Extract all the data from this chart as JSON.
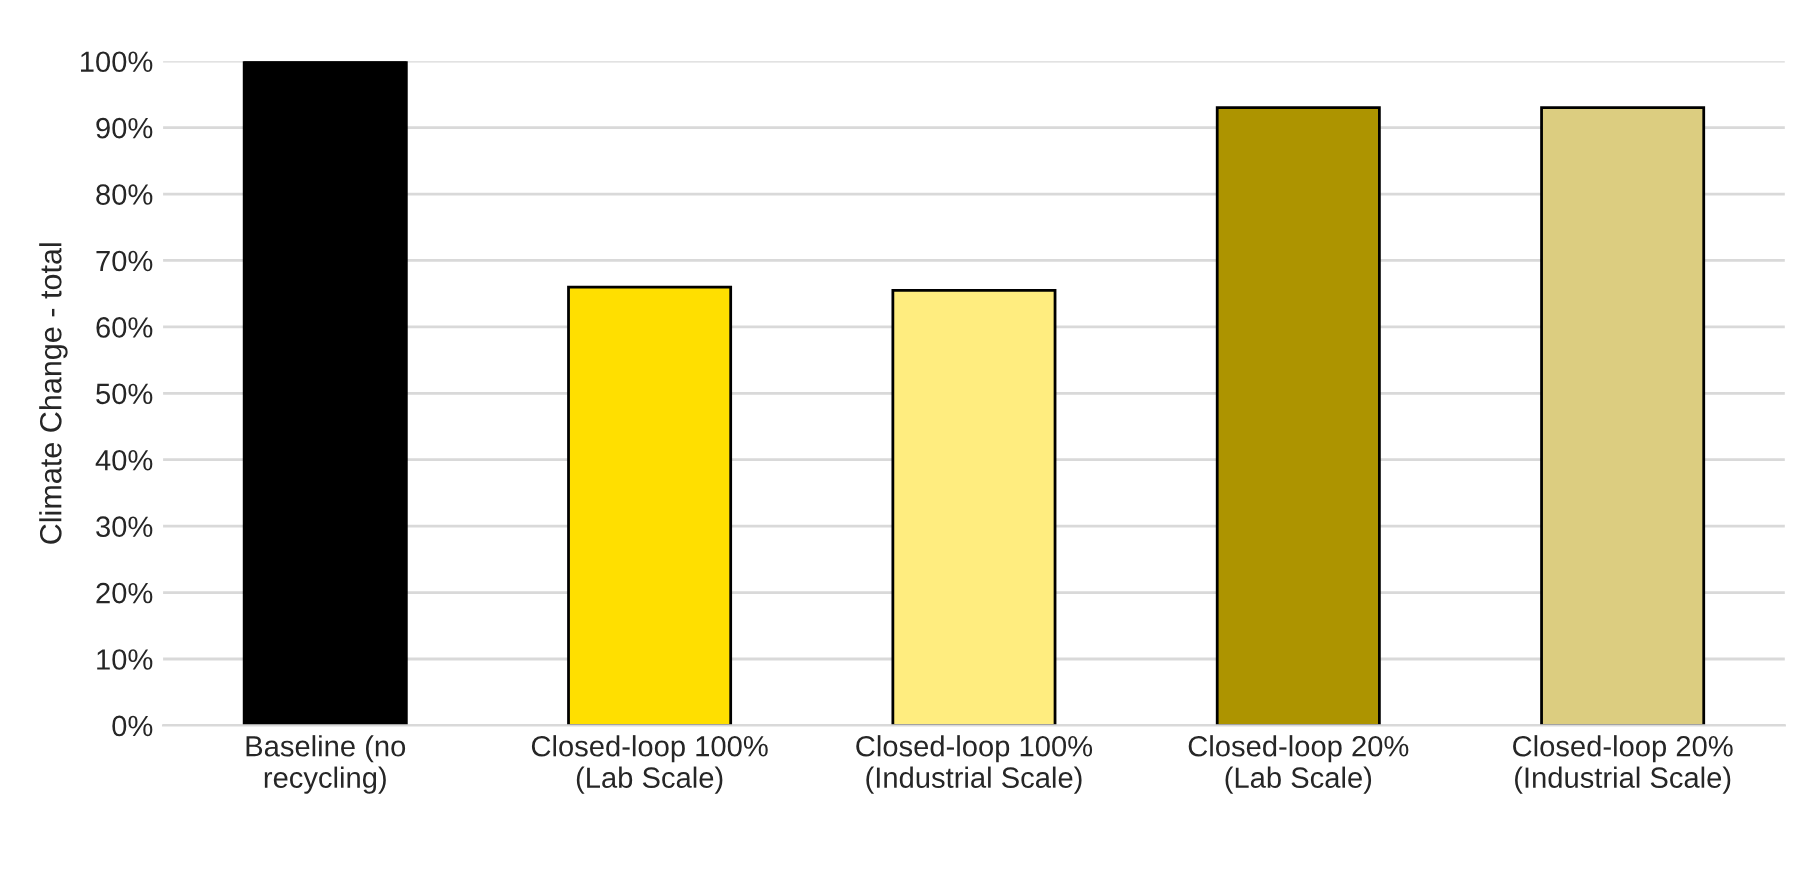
{
  "chart_data": {
    "type": "bar",
    "ylabel": "Climate Change - total",
    "categories": [
      "Baseline (no\nrecycling)",
      "Closed-loop 100%\n(Lab Scale)",
      "Closed-loop 100%\n(Industrial Scale)",
      "Closed-loop 20%\n(Lab Scale)",
      "Closed-loop 20%\n(Industrial Scale)"
    ],
    "values": [
      100,
      66,
      65.5,
      93,
      93
    ],
    "colors": [
      "#000000",
      "#ffdf00",
      "#ffed7f",
      "#ad9400",
      "#dccd80"
    ],
    "ylim": [
      0,
      100
    ],
    "yticks": [
      {
        "value": 0,
        "label": "0%"
      },
      {
        "value": 10,
        "label": "10%"
      },
      {
        "value": 20,
        "label": "20%"
      },
      {
        "value": 30,
        "label": "30%"
      },
      {
        "value": 40,
        "label": "40%"
      },
      {
        "value": 50,
        "label": "50%"
      },
      {
        "value": 60,
        "label": "60%"
      },
      {
        "value": 70,
        "label": "70%"
      },
      {
        "value": 80,
        "label": "80%"
      },
      {
        "value": 90,
        "label": "90%"
      },
      {
        "value": 100,
        "label": "100%"
      }
    ],
    "grid": "y",
    "legend": false
  }
}
